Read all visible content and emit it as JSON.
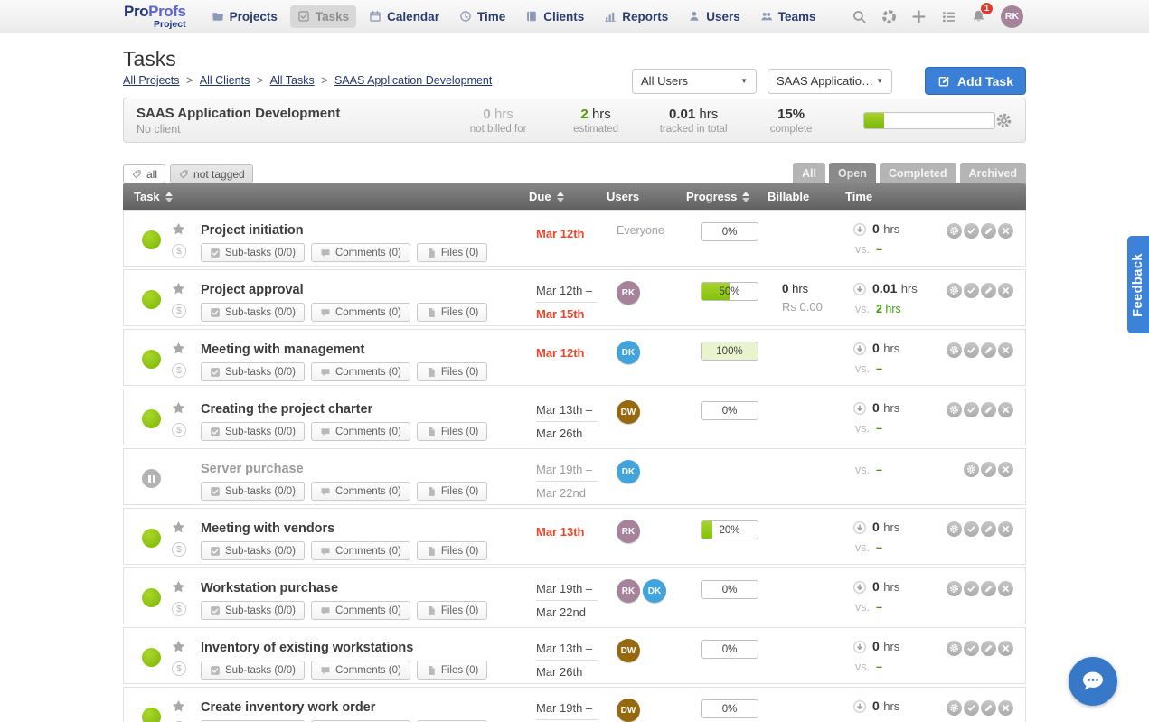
{
  "nav": {
    "logo": {
      "part1": "Pro",
      "part2": "Profs",
      "subtitle": "Project"
    },
    "items": [
      {
        "label": "Projects",
        "icon": "folder"
      },
      {
        "label": "Tasks",
        "icon": "checkbox",
        "active": true
      },
      {
        "label": "Calendar",
        "icon": "calendar"
      },
      {
        "label": "Time",
        "icon": "clock"
      },
      {
        "label": "Clients",
        "icon": "book"
      },
      {
        "label": "Reports",
        "icon": "chart"
      },
      {
        "label": "Users",
        "icon": "user"
      },
      {
        "label": "Teams",
        "icon": "team"
      }
    ],
    "right_icons": [
      "search",
      "help",
      "plus",
      "list"
    ],
    "notification_count": "1",
    "avatar": "RK"
  },
  "header": {
    "title": "Tasks",
    "breadcrumb": [
      "All Projects",
      "All Clients",
      "All Tasks",
      "SAAS Application Development"
    ],
    "breadcrumb_separator": ">",
    "user_filter": "All Users",
    "project_filter": "SAAS Applicatio…",
    "add_task": "Add Task"
  },
  "summary": {
    "project_name": "SAAS Application Development",
    "client": "No client",
    "stats": [
      {
        "value": "0",
        "unit": "hrs",
        "label": "not billed for",
        "style": "muted"
      },
      {
        "value": "2",
        "unit": "hrs",
        "label": "estimated",
        "style": "green"
      },
      {
        "value": "0.01",
        "unit": "hrs",
        "label": "tracked in total",
        "style": "dark"
      },
      {
        "value": "15%",
        "unit": "",
        "label": "complete",
        "style": "dark"
      }
    ],
    "progress_percent": 15
  },
  "filters": {
    "tags": [
      {
        "label": "all",
        "filled": false
      },
      {
        "label": "not tagged",
        "filled": true
      }
    ],
    "tabs": [
      {
        "label": "All",
        "active": false
      },
      {
        "label": "Open",
        "active": true
      },
      {
        "label": "Completed",
        "active": false
      },
      {
        "label": "Archived",
        "active": false
      }
    ]
  },
  "table": {
    "columns": [
      {
        "label": "Task",
        "sortable": true
      },
      {
        "label": "Due",
        "sortable": true
      },
      {
        "label": "Users",
        "sortable": false
      },
      {
        "label": "Progress",
        "sortable": true
      },
      {
        "label": "Billable",
        "sortable": false
      },
      {
        "label": "Time",
        "sortable": false
      }
    ],
    "buttons": {
      "subtasks": "Sub-tasks (0/0)",
      "comments": "Comments (0)",
      "files": "Files (0)"
    },
    "currency_symbol": "$",
    "vs_label": "vs.",
    "rows": [
      {
        "name": "Project initiation",
        "status": "active",
        "muted": false,
        "due": [
          {
            "text": "Mar 12th",
            "red": true
          }
        ],
        "due_divider": false,
        "users": {
          "type": "text",
          "label": "Everyone"
        },
        "progress": {
          "percent": 0,
          "label": "0%"
        },
        "billable": null,
        "time": {
          "value": "0",
          "unit": "hrs",
          "vs": "–"
        },
        "actions": [
          "gear",
          "check",
          "pencil",
          "close"
        ]
      },
      {
        "name": "Project approval",
        "status": "active",
        "muted": false,
        "due": [
          {
            "text": "Mar 12th –",
            "red": false
          },
          {
            "text": "Mar 15th",
            "red": true
          }
        ],
        "due_divider": true,
        "users": {
          "type": "avatars",
          "avatars": [
            {
              "initials": "RK",
              "color": "#a5849b"
            }
          ]
        },
        "progress": {
          "percent": 50,
          "label": "50%"
        },
        "billable": {
          "hours": "0",
          "unit": "hrs",
          "amount": "Rs 0.00"
        },
        "time": {
          "value": "0.01",
          "unit": "hrs",
          "vs": "2 hrs"
        },
        "actions": [
          "gear",
          "check",
          "pencil",
          "close"
        ]
      },
      {
        "name": "Meeting with management",
        "status": "active",
        "muted": false,
        "due": [
          {
            "text": "Mar 12th",
            "red": true
          }
        ],
        "due_divider": false,
        "users": {
          "type": "avatars",
          "avatars": [
            {
              "initials": "DK",
              "color": "#41a4dc"
            }
          ]
        },
        "progress": {
          "percent": 100,
          "label": "100%"
        },
        "billable": null,
        "time": {
          "value": "0",
          "unit": "hrs",
          "vs": "–"
        },
        "actions": [
          "gear",
          "check",
          "pencil",
          "close"
        ]
      },
      {
        "name": "Creating the project charter",
        "status": "active",
        "muted": false,
        "due": [
          {
            "text": "Mar 13th –",
            "red": false
          },
          {
            "text": "Mar 26th",
            "red": false
          }
        ],
        "due_divider": true,
        "users": {
          "type": "avatars",
          "avatars": [
            {
              "initials": "DW",
              "color": "#97690f"
            }
          ]
        },
        "progress": {
          "percent": 0,
          "label": "0%"
        },
        "billable": null,
        "time": {
          "value": "0",
          "unit": "hrs",
          "vs": "–"
        },
        "actions": [
          "gear",
          "check",
          "pencil",
          "close"
        ]
      },
      {
        "name": "Server purchase",
        "status": "paused",
        "muted": true,
        "due": [
          {
            "text": "Mar 19th –",
            "red": false
          },
          {
            "text": "Mar 22nd",
            "red": false
          }
        ],
        "due_divider": true,
        "users": {
          "type": "avatars",
          "avatars": [
            {
              "initials": "DK",
              "color": "#41a4dc"
            }
          ]
        },
        "progress": null,
        "billable": null,
        "time": {
          "vs_only": true,
          "vs": "–"
        },
        "actions": [
          "gear",
          "pencil",
          "close"
        ]
      },
      {
        "name": "Meeting with vendors",
        "status": "active",
        "muted": false,
        "due": [
          {
            "text": "Mar 13th",
            "red": true
          }
        ],
        "due_divider": false,
        "users": {
          "type": "avatars",
          "avatars": [
            {
              "initials": "RK",
              "color": "#a5849b"
            }
          ]
        },
        "progress": {
          "percent": 20,
          "label": "20%"
        },
        "billable": null,
        "time": {
          "value": "0",
          "unit": "hrs",
          "vs": "–"
        },
        "actions": [
          "gear",
          "check",
          "pencil",
          "close"
        ]
      },
      {
        "name": "Workstation purchase",
        "status": "active",
        "muted": false,
        "due": [
          {
            "text": "Mar 19th –",
            "red": false
          },
          {
            "text": "Mar 22nd",
            "red": false
          }
        ],
        "due_divider": true,
        "users": {
          "type": "avatars",
          "avatars": [
            {
              "initials": "RK",
              "color": "#a5849b"
            },
            {
              "initials": "DK",
              "color": "#41a4dc"
            }
          ]
        },
        "progress": {
          "percent": 0,
          "label": "0%"
        },
        "billable": null,
        "time": {
          "value": "0",
          "unit": "hrs",
          "vs": "–"
        },
        "actions": [
          "gear",
          "check",
          "pencil",
          "close"
        ]
      },
      {
        "name": "Inventory of existing workstations",
        "status": "active",
        "muted": false,
        "due": [
          {
            "text": "Mar 13th –",
            "red": false
          },
          {
            "text": "Mar 26th",
            "red": false
          }
        ],
        "due_divider": true,
        "users": {
          "type": "avatars",
          "avatars": [
            {
              "initials": "DW",
              "color": "#97690f"
            }
          ]
        },
        "progress": {
          "percent": 0,
          "label": "0%"
        },
        "billable": null,
        "time": {
          "value": "0",
          "unit": "hrs",
          "vs": "–"
        },
        "actions": [
          "gear",
          "check",
          "pencil",
          "close"
        ]
      },
      {
        "name": "Create inventory work order",
        "status": "active",
        "muted": false,
        "due": [
          {
            "text": "Mar 19th –",
            "red": false
          }
        ],
        "due_divider": true,
        "users": {
          "type": "avatars",
          "avatars": [
            {
              "initials": "DW",
              "color": "#97690f"
            }
          ]
        },
        "progress": {
          "percent": 0,
          "label": "0%"
        },
        "billable": null,
        "time": {
          "value": "0",
          "unit": "hrs",
          "vs": "–"
        },
        "actions": [
          "gear",
          "check",
          "pencil",
          "close"
        ]
      }
    ]
  },
  "feedback_label": "Feedback",
  "colors": {
    "green": "#8cc40e",
    "red": "#e8472b",
    "accent_blue": "#3a80d7"
  }
}
